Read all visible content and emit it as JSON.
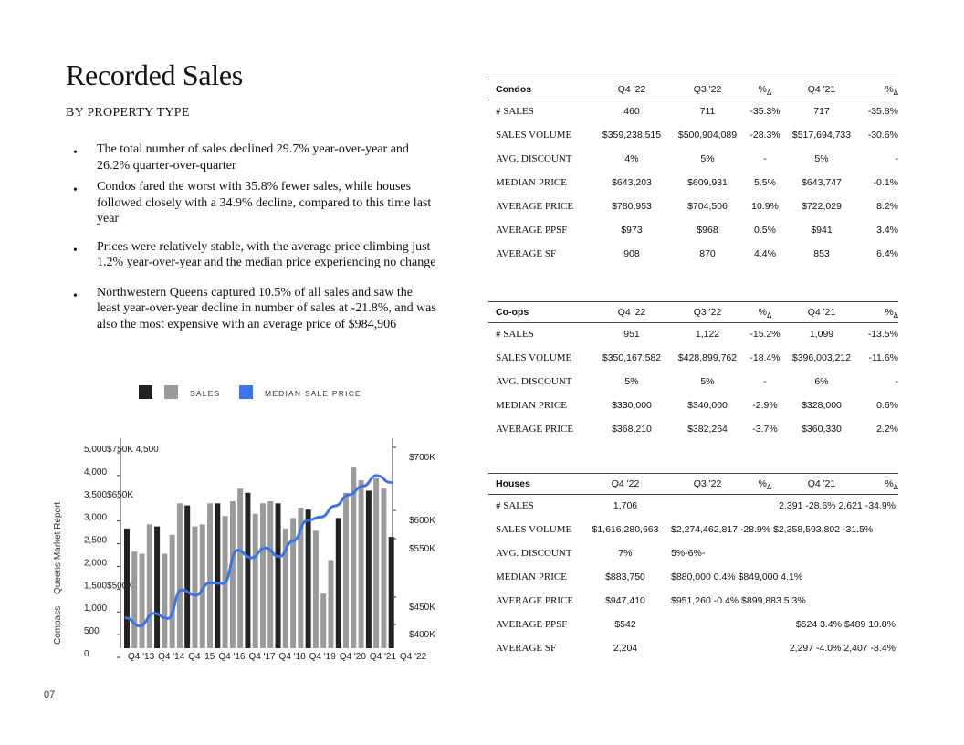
{
  "title": "Recorded Sales",
  "subtitle": "BY PROPERTY TYPE",
  "bullets": [
    "The total number of sales declined 29.7% year-over-year and 26.2% quarter-over-quarter",
    "Condos fared the worst with 35.8% fewer sales, while houses followed closely with a 34.9% decline, compared to this time last year",
    "Prices were relatively stable, with the average price climbing just 1.2% year-over-year and the median price experiencing no change",
    "Northwestern Queens captured 10.5% of all sales and saw the least year-over-year decline in number of sales at -21.8%, and was also the most expensive with an average price of $984,906"
  ],
  "side_label": {
    "brand": "Compass",
    "report": "Queens Market Report"
  },
  "page_number": "07",
  "legend": {
    "sales": "SALES",
    "median": "MEDIAN SALE PRICE"
  },
  "colors": {
    "dark_bar": "#222222",
    "light_bar": "#9a9a9a",
    "line": "#3d74e8"
  },
  "chart_data": {
    "type": "bar",
    "title": "",
    "left_axis_labels": [
      "5,000$750K 4,500",
      "4,000",
      "3,500$650K",
      "3,000",
      "2,500",
      "2,000",
      "1,500$500K",
      "1,000",
      "500",
      "0"
    ],
    "right_axis_labels": [
      "$700K",
      "$600K",
      "$550K",
      "$450K",
      "$400K"
    ],
    "x_labels": [
      "Q4 '13",
      "Q4 '14",
      "Q4 '15",
      "Q4 '16",
      "Q4 '17",
      "Q4 '18",
      "Q4 '19",
      "Q4 '20",
      "Q4 '21",
      "Q4 '22"
    ],
    "ylim_sales": [
      0,
      5000
    ],
    "ylim_price": [
      380000,
      740000
    ],
    "series": [
      {
        "name": "SALES",
        "values": [
          2850,
          2300,
          2250,
          2950,
          2900,
          2250,
          2700,
          3450,
          3400,
          2900,
          2950,
          3450,
          3450,
          3150,
          3500,
          3800,
          3700,
          3200,
          3450,
          3500,
          3450,
          2850,
          3100,
          3350,
          3300,
          2800,
          1300,
          2100,
          3100,
          3700,
          4300,
          4000,
          3750,
          4050,
          3800,
          2650
        ],
        "dark_indices": [
          0,
          4,
          8,
          12,
          16,
          20,
          24,
          28,
          32,
          35
        ]
      },
      {
        "name": "MEDIAN SALE PRICE",
        "values": [
          432000,
          418000,
          440000,
          431000,
          480000,
          471000,
          492000,
          491000,
          548000,
          535000,
          552000,
          537000,
          564000,
          599000,
          605000,
          624000,
          643000,
          658000,
          676000,
          664000
        ]
      }
    ]
  },
  "condos": {
    "title": "Condos",
    "headers": [
      "Q4 '22",
      "Q3 '22",
      "%",
      "Q4 '21",
      "%"
    ],
    "delta": "Δ",
    "rows": [
      {
        "label": "# SALES",
        "v": [
          "460",
          "711",
          "-35.3%",
          "717",
          "-35.8%"
        ]
      },
      {
        "label": "SALES VOLUME",
        "v": [
          "$359,238,515",
          "$500,904,089",
          "-28.3%",
          "$517,694,733",
          "-30.6%"
        ]
      },
      {
        "label": "AVG. DISCOUNT",
        "v": [
          "4%",
          "5%",
          "-",
          "5%",
          "-"
        ]
      },
      {
        "label": "MEDIAN PRICE",
        "v": [
          "$643,203",
          "$609,931",
          "5.5%",
          "$643,747",
          "-0.1%"
        ]
      },
      {
        "label": "AVERAGE PRICE",
        "v": [
          "$780,953",
          "$704,506",
          "10.9%",
          "$722,029",
          "8.2%"
        ]
      },
      {
        "label": "AVERAGE PPSF",
        "v": [
          "$973",
          "$968",
          "0.5%",
          "$941",
          "3.4%"
        ]
      },
      {
        "label": "AVERAGE SF",
        "v": [
          "908",
          "870",
          "4.4%",
          "853",
          "6.4%"
        ]
      }
    ]
  },
  "coops": {
    "title": "Co-ops",
    "headers": [
      "Q4 '22",
      "Q3 '22",
      "%",
      "Q4 '21",
      "%"
    ],
    "delta": "Δ",
    "rows": [
      {
        "label": "# SALES",
        "v": [
          "951",
          "1,122",
          "-15.2%",
          "1,099",
          "-13.5%"
        ]
      },
      {
        "label": "SALES VOLUME",
        "v": [
          "$350,167,582",
          "$428,899,762",
          "-18.4%",
          "$396,003,212",
          "-11.6%"
        ]
      },
      {
        "label": "AVG. DISCOUNT",
        "v": [
          "5%",
          "5%",
          "-",
          "6%",
          "-"
        ]
      },
      {
        "label": "MEDIAN PRICE",
        "v": [
          "$330,000",
          "$340,000",
          "-2.9%",
          "$328,000",
          "0.6%"
        ]
      },
      {
        "label": "AVERAGE PRICE",
        "v": [
          "$368,210",
          "$382,264",
          "-3.7%",
          "$360,330",
          "2.2%"
        ]
      }
    ]
  },
  "houses": {
    "title": "Houses",
    "headers": [
      "Q4 '22",
      "Q3 '22",
      "%",
      "Q4 '21",
      "%"
    ],
    "delta": "Δ",
    "rows": [
      {
        "label": "# SALES",
        "q4_22": "1,706",
        "rest": "",
        "rest_right": "2,391 -28.6% 2,621 -34.9%"
      },
      {
        "label": "SALES VOLUME",
        "q4_22": "$1,616,280,663",
        "rest": "$2,274,462,817 -28.9% $2,358,593,802 -31.5%",
        "rest_right": ""
      },
      {
        "label": "AVG. DISCOUNT",
        "q4_22": "7%",
        "rest": "5%-6%-",
        "rest_right": ""
      },
      {
        "label": "MEDIAN PRICE",
        "q4_22": "$883,750",
        "rest": "$880,000 0.4% $849,000 4.1%",
        "rest_right": ""
      },
      {
        "label": "AVERAGE PRICE",
        "q4_22": "$947,410",
        "rest": "$951,260 -0.4% $899,883 5.3%",
        "rest_right": ""
      },
      {
        "label": "AVERAGE PPSF",
        "q4_22": "$542",
        "rest": "",
        "rest_right": "$524 3.4% $489 10.8%"
      },
      {
        "label": "AVERAGE SF",
        "q4_22": "2,204",
        "rest": "",
        "rest_right": "2,297 -4.0% 2,407 -8.4%"
      }
    ]
  }
}
